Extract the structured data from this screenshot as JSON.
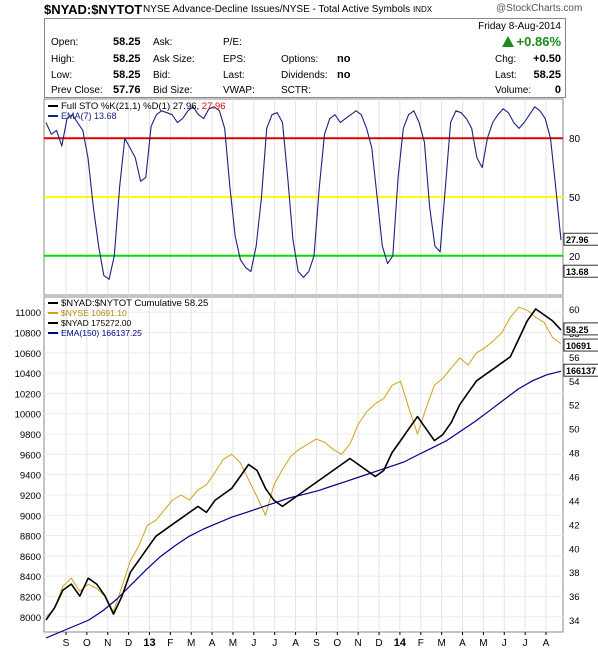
{
  "header": {
    "symbol": "$NYAD:$NYTOT",
    "description": "NYSE Advance-Decline Issues/NYSE - Total Active Symbols",
    "exchange": "INDX",
    "watermark": "@StockCharts.com",
    "date": "Friday  8-Aug-2014"
  },
  "quote": {
    "open_label": "Open:",
    "open": "58.25",
    "high_label": "High:",
    "high": "58.25",
    "low_label": "Low:",
    "low": "58.25",
    "prev_label": "Prev Close:",
    "prev": "57.76",
    "ask_label": "Ask:",
    "asksize_label": "Ask Size:",
    "bid_label": "Bid:",
    "bidsize_label": "Bid Size:",
    "pe_label": "P/E:",
    "eps_label": "EPS:",
    "last_label1": "Last:",
    "vwap_label": "VWAP:",
    "options_label": "Options:",
    "options": "no",
    "dividends_label": "Dividends:",
    "dividends": "no",
    "sctr_label": "SCTR:",
    "pct_change": "+0.86%",
    "chg_label": "Chg:",
    "chg": "+0.50",
    "last_label": "Last:",
    "last": "58.25",
    "volume_label": "Volume:",
    "volume": "0"
  },
  "colors": {
    "sto": "#1a237e",
    "red": "#e00000",
    "yellow": "#ffff00",
    "green": "#00e000",
    "gold": "#d4a017",
    "black": "#000000",
    "navy": "#00008b",
    "up": "#1a8a1a"
  },
  "chart_data": [
    {
      "type": "line",
      "title": "Full STO %K(21,1) %D(1) 27.96, 27.96",
      "legend": [
        "Full STO %K(21,1) %D(1) 27.96, 27.96",
        "EMA(7) 13.68"
      ],
      "ylim": [
        0,
        100
      ],
      "y_ticks": [
        20,
        50,
        80
      ],
      "reference_lines": [
        80,
        50,
        20
      ],
      "last_value_labels": [
        "27.96",
        "13.68"
      ],
      "series": [
        {
          "name": "Full STO %K(21,1) %D(1)",
          "values": [
            88,
            82,
            84,
            76,
            90,
            92,
            88,
            84,
            70,
            45,
            25,
            10,
            8,
            20,
            55,
            80,
            75,
            70,
            58,
            60,
            86,
            92,
            94,
            93,
            92,
            88,
            90,
            94,
            96,
            92,
            90,
            95,
            96,
            94,
            85,
            55,
            30,
            18,
            14,
            12,
            25,
            50,
            85,
            92,
            93,
            88,
            60,
            28,
            12,
            9,
            12,
            20,
            55,
            82,
            90,
            92,
            88,
            90,
            92,
            94,
            92,
            85,
            75,
            50,
            25,
            16,
            20,
            60,
            85,
            92,
            94,
            88,
            78,
            45,
            25,
            22,
            55,
            88,
            94,
            93,
            90,
            85,
            70,
            65,
            80,
            88,
            92,
            95,
            93,
            88,
            85,
            88,
            92,
            96,
            94,
            90,
            80,
            55,
            27.96
          ]
        }
      ]
    },
    {
      "type": "line",
      "title": "$NYAD:$NYTOT Cumulative 58.25",
      "legend": [
        "$NYAD:$NYTOT Cumulative 58.25",
        "$NYSE 10691.10",
        "$NYAD 175272.00",
        "EMA(150) 166137.25"
      ],
      "x_ticks": [
        "S",
        "O",
        "N",
        "D",
        "13",
        "F",
        "M",
        "A",
        "M",
        "J",
        "J",
        "A",
        "S",
        "O",
        "N",
        "D",
        "14",
        "F",
        "M",
        "A",
        "M",
        "J",
        "J",
        "A"
      ],
      "left_axis": {
        "ylim": [
          7850,
          11150
        ],
        "ticks": [
          8000,
          8200,
          8400,
          8600,
          8800,
          9000,
          9200,
          9400,
          9600,
          9800,
          10000,
          10200,
          10400,
          10600,
          10800,
          11000
        ]
      },
      "right_axis": {
        "ylim": [
          33,
          61
        ],
        "ticks": [
          34,
          36,
          38,
          40,
          42,
          44,
          46,
          48,
          50,
          52,
          54,
          56,
          58,
          60
        ]
      },
      "last_value_labels": [
        "58.25",
        "10691",
        "166137"
      ],
      "series": [
        {
          "name": "$NYAD:$NYTOT Cumulative",
          "axis": "right",
          "values": [
            34,
            35,
            36.5,
            37,
            36,
            37.5,
            37,
            36,
            34.5,
            36,
            38,
            39,
            40,
            41,
            41.5,
            42,
            42.5,
            43,
            43.5,
            43,
            44,
            44.5,
            45,
            46,
            47,
            46.5,
            45,
            44,
            43.5,
            44,
            44.5,
            45,
            45.5,
            46,
            46.5,
            47,
            47.5,
            47,
            46.5,
            46,
            46.5,
            48,
            49,
            50,
            51,
            50,
            49,
            49.5,
            50.5,
            52,
            53,
            54,
            54.5,
            55,
            55.5,
            56,
            57.5,
            59,
            60,
            59.5,
            59,
            58.25
          ]
        },
        {
          "name": "$NYSE",
          "axis": "left",
          "values": [
            8000,
            8080,
            8300,
            8380,
            8250,
            8320,
            8280,
            8200,
            8050,
            8300,
            8550,
            8700,
            8900,
            8950,
            9050,
            9150,
            9200,
            9150,
            9250,
            9300,
            9420,
            9550,
            9600,
            9520,
            9350,
            9180,
            9000,
            9300,
            9450,
            9580,
            9650,
            9700,
            9750,
            9720,
            9650,
            9600,
            9700,
            9900,
            10020,
            10100,
            10150,
            10280,
            10320,
            10050,
            9800,
            10050,
            10280,
            10350,
            10450,
            10550,
            10480,
            10600,
            10650,
            10720,
            10800,
            10950,
            11050,
            11020,
            10950,
            10900,
            10750,
            10691.1
          ]
        },
        {
          "name": "EMA(150)",
          "axis": "right",
          "values": [
            32.5,
            33,
            33.5,
            34,
            34.8,
            35.8,
            37,
            38.2,
            39.3,
            40.2,
            41,
            41.6,
            42.1,
            42.6,
            43,
            43.4,
            43.8,
            44.2,
            44.5,
            44.8,
            45.2,
            45.6,
            46,
            46.4,
            46.8,
            47.2,
            47.8,
            48.4,
            49,
            49.8,
            50.6,
            51.5,
            52.4,
            53.3,
            54,
            54.5,
            54.8
          ]
        }
      ]
    }
  ]
}
